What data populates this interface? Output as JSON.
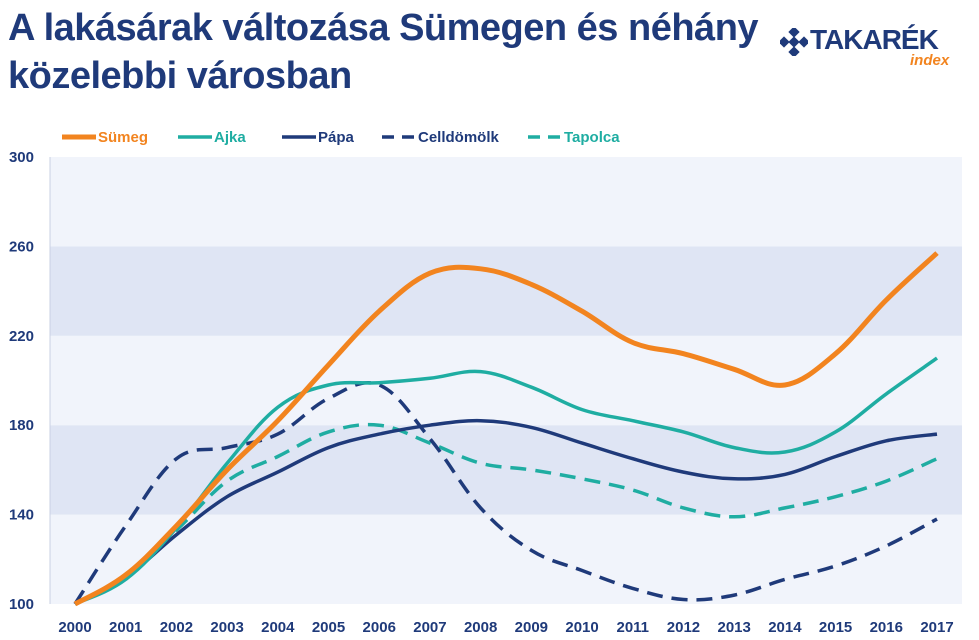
{
  "title": {
    "line1": "A lakásárak változása Sümegen és néhány",
    "line2": "közelebbi városban"
  },
  "logo": {
    "word": "TAKARÉK",
    "sub": "index"
  },
  "chart_data": {
    "type": "line",
    "title": "A lakásárak változása Sümegen és néhány közelebbi városban",
    "xlabel": "",
    "ylabel": "",
    "ylim": [
      100,
      300
    ],
    "yticks": [
      100,
      140,
      180,
      220,
      260,
      300
    ],
    "ytick_labels": [
      "100",
      "140",
      "180",
      "220",
      "260",
      "300"
    ],
    "categories": [
      "2000",
      "2001",
      "2002",
      "2003",
      "2004",
      "2005",
      "2006",
      "2007",
      "2008",
      "2009",
      "2010",
      "2011",
      "2012",
      "2013",
      "2014",
      "2015",
      "2016",
      "2017"
    ],
    "legend_position": "top",
    "series": [
      {
        "name": "Sümeg",
        "color": "#f2841f",
        "dash": "solid",
        "width": 5,
        "values": [
          100,
          113,
          135,
          160,
          182,
          207,
          231,
          248,
          250,
          243,
          231,
          217,
          212,
          205,
          198,
          212,
          236,
          257
        ]
      },
      {
        "name": "Ajka",
        "color": "#1fada2",
        "dash": "solid",
        "width": 3.5,
        "values": [
          100,
          111,
          134,
          163,
          188,
          198,
          199,
          201,
          204,
          197,
          187,
          182,
          177,
          170,
          168,
          177,
          194,
          210
        ]
      },
      {
        "name": "Pápa",
        "color": "#1f3a7a",
        "dash": "solid",
        "width": 3.5,
        "values": [
          100,
          112,
          131,
          148,
          159,
          170,
          176,
          180,
          182,
          179,
          172,
          165,
          159,
          156,
          158,
          166,
          173,
          176
        ]
      },
      {
        "name": "Celldömölk",
        "color": "#1f3a7a",
        "dash": "dashed",
        "width": 3.5,
        "values": [
          100,
          135,
          165,
          170,
          176,
          192,
          198,
          174,
          143,
          124,
          115,
          107,
          102,
          104,
          111,
          117,
          126,
          138
        ]
      },
      {
        "name": "Tapolca",
        "color": "#1fada2",
        "dash": "dashed",
        "width": 3.5,
        "values": [
          100,
          113,
          133,
          155,
          166,
          177,
          180,
          172,
          163,
          160,
          156,
          151,
          143,
          139,
          143,
          148,
          155,
          165
        ]
      }
    ]
  }
}
